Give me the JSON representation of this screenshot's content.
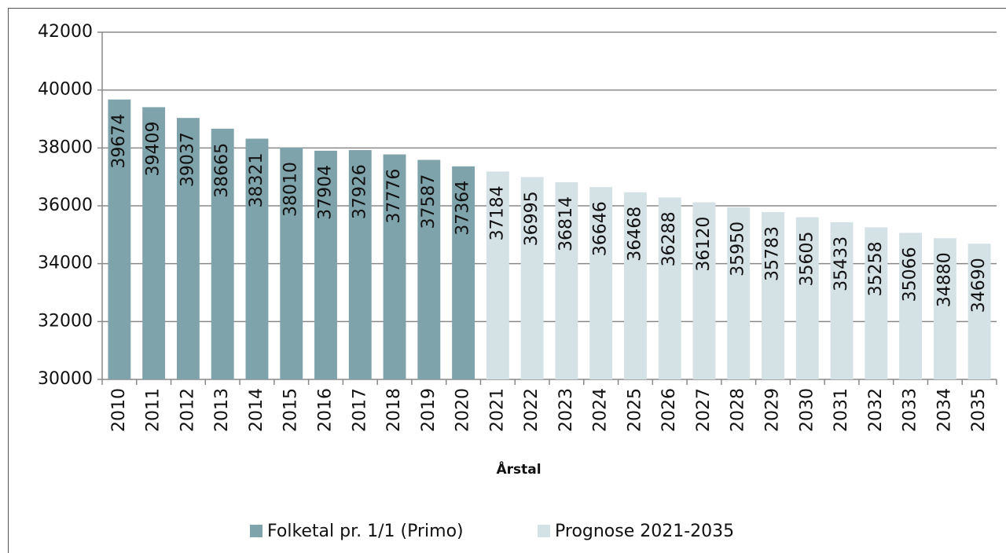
{
  "chart_data": {
    "type": "bar",
    "x_label": "Årstal",
    "categories": [
      "2010",
      "2011",
      "2012",
      "2013",
      "2014",
      "2015",
      "2016",
      "2017",
      "2018",
      "2019",
      "2020",
      "2021",
      "2022",
      "2023",
      "2024",
      "2025",
      "2026",
      "2027",
      "2028",
      "2029",
      "2030",
      "2031",
      "2032",
      "2033",
      "2034",
      "2035"
    ],
    "series": [
      {
        "name": "Folketal pr. 1/1 (Primo)",
        "color": "#7fa3ab",
        "values": [
          39674,
          39409,
          39037,
          38665,
          38321,
          38010,
          37904,
          37926,
          37776,
          37587,
          37364,
          null,
          null,
          null,
          null,
          null,
          null,
          null,
          null,
          null,
          null,
          null,
          null,
          null,
          null,
          null
        ]
      },
      {
        "name": "Prognose 2021-2035",
        "color": "#d4e1e5",
        "values": [
          null,
          null,
          null,
          null,
          null,
          null,
          null,
          null,
          null,
          null,
          null,
          37184,
          36995,
          36814,
          36646,
          36468,
          36288,
          36120,
          35950,
          35783,
          35605,
          35433,
          35258,
          35066,
          34880,
          34690
        ]
      }
    ],
    "ylim": [
      30000,
      42000
    ],
    "yticks": [
      30000,
      32000,
      34000,
      36000,
      38000,
      40000,
      42000
    ],
    "grid": true
  }
}
